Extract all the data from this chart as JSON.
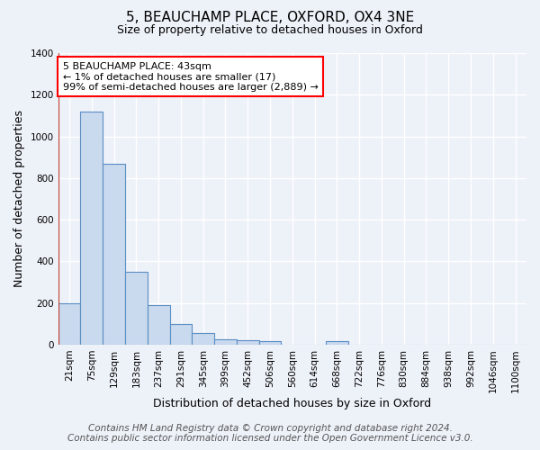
{
  "title": "5, BEAUCHAMP PLACE, OXFORD, OX4 3NE",
  "subtitle": "Size of property relative to detached houses in Oxford",
  "xlabel": "Distribution of detached houses by size in Oxford",
  "ylabel": "Number of detached properties",
  "bar_labels": [
    "21sqm",
    "75sqm",
    "129sqm",
    "183sqm",
    "237sqm",
    "291sqm",
    "345sqm",
    "399sqm",
    "452sqm",
    "506sqm",
    "560sqm",
    "614sqm",
    "668sqm",
    "722sqm",
    "776sqm",
    "830sqm",
    "884sqm",
    "938sqm",
    "992sqm",
    "1046sqm",
    "1100sqm"
  ],
  "bar_values": [
    200,
    1120,
    870,
    350,
    190,
    100,
    55,
    25,
    20,
    15,
    0,
    0,
    15,
    0,
    0,
    0,
    0,
    0,
    0,
    0,
    0
  ],
  "bar_color": "#c9d9ee",
  "bar_edge_color": "#5b8ec4",
  "highlight_color": "#c0392b",
  "annotation_text": "5 BEAUCHAMP PLACE: 43sqm\n← 1% of detached houses are smaller (17)\n99% of semi-detached houses are larger (2,889) →",
  "ylim": [
    0,
    1400
  ],
  "yticks": [
    0,
    200,
    400,
    600,
    800,
    1000,
    1200,
    1400
  ],
  "background_color": "#edf1f8",
  "plot_bg_color": "#edf1f8",
  "grid_color": "#d0d8e8",
  "footer": "Contains HM Land Registry data © Crown copyright and database right 2024.\nContains public sector information licensed under the Open Government Licence v3.0.",
  "title_fontsize": 11,
  "subtitle_fontsize": 9,
  "annotation_fontsize": 8,
  "footer_fontsize": 7.5,
  "axis_label_fontsize": 9,
  "tick_fontsize": 7.5
}
